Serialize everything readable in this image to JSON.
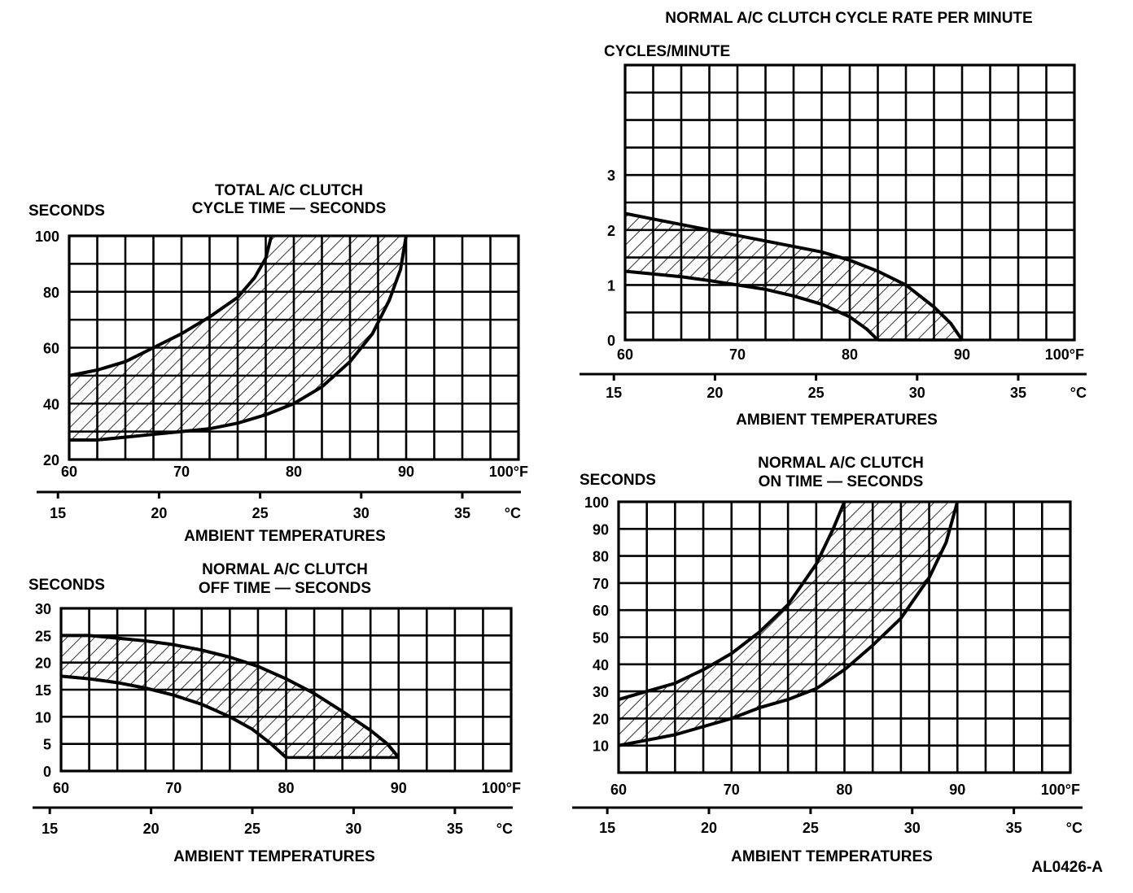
{
  "figure_id": "AL0426-A",
  "colors": {
    "ink": "#000000",
    "background": "#ffffff"
  },
  "chart_data": [
    {
      "id": "total-cycle-time",
      "type": "area",
      "title": [
        "TOTAL A/C CLUTCH",
        "CYCLE TIME — SECONDS"
      ],
      "ylabel": "SECONDS",
      "xlabel": "AMBIENT TEMPERATURES",
      "xlim": [
        60,
        100
      ],
      "ylim": [
        20,
        100
      ],
      "grid": true,
      "x_step": 2.5,
      "y_step": 10,
      "yticks": [
        {
          "v": 20,
          "label": "20"
        },
        {
          "v": 40,
          "label": "40"
        },
        {
          "v": 60,
          "label": "60"
        },
        {
          "v": 80,
          "label": "80"
        },
        {
          "v": 100,
          "label": "100"
        }
      ],
      "xticks_f": [
        {
          "v": 60,
          "label": "60"
        },
        {
          "v": 70,
          "label": "70"
        },
        {
          "v": 80,
          "label": "80"
        },
        {
          "v": 90,
          "label": "90"
        },
        {
          "v": 100,
          "label": "100°F"
        }
      ],
      "xticks_c": [
        {
          "v": 15,
          "label": "15"
        },
        {
          "v": 20,
          "label": "20"
        },
        {
          "v": 25,
          "label": "25"
        },
        {
          "v": 30,
          "label": "30"
        },
        {
          "v": 35,
          "label": "35"
        }
      ],
      "c_unit": "°C",
      "series": [
        {
          "name": "upper limit",
          "x": [
            60,
            62.5,
            65,
            67.5,
            70,
            72.5,
            75,
            76.5,
            77.5,
            78
          ],
          "y": [
            50,
            52,
            55,
            60,
            65,
            71,
            78,
            85,
            92,
            100
          ]
        },
        {
          "name": "lower limit",
          "x": [
            60,
            62.5,
            65,
            67.5,
            70,
            72.5,
            75,
            77.5,
            80,
            82.5,
            85,
            87,
            88.5,
            89.5,
            90
          ],
          "y": [
            27,
            27,
            28,
            29,
            30,
            31,
            33,
            36,
            40,
            46,
            55,
            65,
            77,
            88,
            100
          ]
        }
      ],
      "band_closure": []
    },
    {
      "id": "off-time",
      "type": "area",
      "title": [
        "NORMAL A/C CLUTCH",
        "OFF TIME — SECONDS"
      ],
      "ylabel": "SECONDS",
      "xlabel": "AMBIENT TEMPERATURES",
      "xlim": [
        60,
        100
      ],
      "ylim": [
        0,
        30
      ],
      "grid": true,
      "x_step": 2.5,
      "y_step": 5,
      "yticks": [
        {
          "v": 0,
          "label": "0"
        },
        {
          "v": 5,
          "label": "5"
        },
        {
          "v": 10,
          "label": "10"
        },
        {
          "v": 15,
          "label": "15"
        },
        {
          "v": 20,
          "label": "20"
        },
        {
          "v": 25,
          "label": "25"
        },
        {
          "v": 30,
          "label": "30"
        }
      ],
      "xticks_f": [
        {
          "v": 60,
          "label": "60"
        },
        {
          "v": 70,
          "label": "70"
        },
        {
          "v": 80,
          "label": "80"
        },
        {
          "v": 90,
          "label": "90"
        },
        {
          "v": 100,
          "label": "100°F"
        }
      ],
      "xticks_c": [
        {
          "v": 15,
          "label": "15"
        },
        {
          "v": 20,
          "label": "20"
        },
        {
          "v": 25,
          "label": "25"
        },
        {
          "v": 30,
          "label": "30"
        },
        {
          "v": 35,
          "label": "35"
        }
      ],
      "c_unit": "°C",
      "series": [
        {
          "name": "upper limit",
          "x": [
            60,
            62.5,
            65,
            67.5,
            70,
            72.5,
            75,
            77.5,
            80,
            82.5,
            85,
            87.5,
            89,
            90
          ],
          "y": [
            25,
            25,
            24.5,
            24,
            23.3,
            22.3,
            21,
            19.3,
            17,
            14.3,
            11,
            7.5,
            5,
            2.5
          ]
        },
        {
          "name": "lower limit",
          "x": [
            60,
            62.5,
            65,
            67.5,
            70,
            72.5,
            75,
            77,
            78.5,
            80
          ],
          "y": [
            17.5,
            17,
            16.3,
            15.3,
            14,
            12.3,
            10,
            7.7,
            5.3,
            2.5
          ]
        }
      ],
      "band_closure": [
        {
          "x": 90,
          "y": 2.5
        },
        {
          "x": 80,
          "y": 2.5
        }
      ]
    },
    {
      "id": "cycle-rate",
      "type": "area",
      "title": [
        "NORMAL A/C CLUTCH CYCLE RATE PER MINUTE"
      ],
      "ylabel": "CYCLES/MINUTE",
      "xlabel": "AMBIENT TEMPERATURES",
      "xlim": [
        60,
        100
      ],
      "ylim": [
        0,
        5
      ],
      "grid": true,
      "x_step": 2.5,
      "y_step": 0.5,
      "yticks": [
        {
          "v": 0,
          "label": "0"
        },
        {
          "v": 1,
          "label": "1"
        },
        {
          "v": 2,
          "label": "2"
        },
        {
          "v": 3,
          "label": "3"
        }
      ],
      "xticks_f": [
        {
          "v": 60,
          "label": "60"
        },
        {
          "v": 70,
          "label": "70"
        },
        {
          "v": 80,
          "label": "80"
        },
        {
          "v": 90,
          "label": "90"
        },
        {
          "v": 100,
          "label": "100°F"
        }
      ],
      "xticks_c": [
        {
          "v": 15,
          "label": "15"
        },
        {
          "v": 20,
          "label": "20"
        },
        {
          "v": 25,
          "label": "25"
        },
        {
          "v": 30,
          "label": "30"
        },
        {
          "v": 35,
          "label": "35"
        }
      ],
      "c_unit": "°C",
      "series": [
        {
          "name": "upper limit",
          "x": [
            60,
            62.5,
            65,
            67.5,
            70,
            72.5,
            75,
            77.5,
            80,
            82.5,
            85,
            87.5,
            89,
            90
          ],
          "y": [
            2.3,
            2.2,
            2.1,
            2.0,
            1.9,
            1.8,
            1.7,
            1.6,
            1.45,
            1.25,
            1.0,
            0.6,
            0.3,
            0
          ]
        },
        {
          "name": "lower limit",
          "x": [
            60,
            62.5,
            65,
            67.5,
            70,
            72.5,
            75,
            77.5,
            80,
            81.5,
            82.5
          ],
          "y": [
            1.25,
            1.2,
            1.15,
            1.08,
            1.0,
            0.92,
            0.8,
            0.65,
            0.42,
            0.2,
            0
          ]
        }
      ],
      "band_closure": [
        {
          "x": 90,
          "y": 0
        },
        {
          "x": 82.5,
          "y": 0
        }
      ]
    },
    {
      "id": "on-time",
      "type": "area",
      "title": [
        "NORMAL A/C CLUTCH",
        "ON TIME — SECONDS"
      ],
      "ylabel": "SECONDS",
      "xlabel": "AMBIENT TEMPERATURES",
      "xlim": [
        60,
        100
      ],
      "ylim": [
        0,
        100
      ],
      "grid": true,
      "x_step": 2.5,
      "y_step": 10,
      "yticks": [
        {
          "v": 10,
          "label": "10"
        },
        {
          "v": 20,
          "label": "20"
        },
        {
          "v": 30,
          "label": "30"
        },
        {
          "v": 40,
          "label": "40"
        },
        {
          "v": 50,
          "label": "50"
        },
        {
          "v": 60,
          "label": "60"
        },
        {
          "v": 70,
          "label": "70"
        },
        {
          "v": 80,
          "label": "80"
        },
        {
          "v": 90,
          "label": "90"
        },
        {
          "v": 100,
          "label": "100"
        }
      ],
      "xticks_f": [
        {
          "v": 60,
          "label": "60"
        },
        {
          "v": 70,
          "label": "70"
        },
        {
          "v": 80,
          "label": "80"
        },
        {
          "v": 90,
          "label": "90"
        },
        {
          "v": 100,
          "label": "100°F"
        }
      ],
      "xticks_c": [
        {
          "v": 15,
          "label": "15"
        },
        {
          "v": 20,
          "label": "20"
        },
        {
          "v": 25,
          "label": "25"
        },
        {
          "v": 30,
          "label": "30"
        },
        {
          "v": 35,
          "label": "35"
        }
      ],
      "c_unit": "°C",
      "series": [
        {
          "name": "upper limit",
          "x": [
            60,
            62.5,
            65,
            67.5,
            70,
            72.5,
            75,
            77.5,
            79,
            80
          ],
          "y": [
            27,
            30,
            33,
            38,
            44,
            52,
            62,
            77,
            90,
            100
          ]
        },
        {
          "name": "lower limit",
          "x": [
            60,
            62.5,
            65,
            67.5,
            70,
            72.5,
            75,
            77.5,
            80,
            82.5,
            85,
            87.5,
            89,
            90
          ],
          "y": [
            10,
            12,
            14,
            17,
            20,
            24,
            27,
            31,
            38,
            47,
            57,
            72,
            85,
            100
          ]
        }
      ],
      "band_closure": []
    }
  ]
}
